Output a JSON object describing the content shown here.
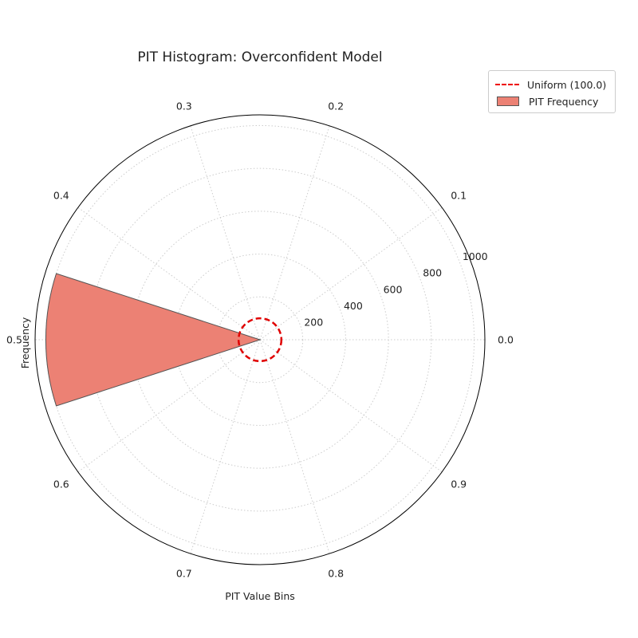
{
  "chart_data": {
    "type": "polar-bar",
    "title": "PIT Histogram: Overconfident Model",
    "xlabel": "PIT Value Bins",
    "ylabel": "Frequency",
    "categories": [
      "0.0",
      "0.1",
      "0.2",
      "0.3",
      "0.4",
      "0.5",
      "0.6",
      "0.7",
      "0.8",
      "0.9"
    ],
    "values": [
      0,
      0,
      0,
      0,
      0,
      1000,
      0,
      0,
      0,
      0
    ],
    "radial_ticks": [
      200,
      400,
      600,
      800,
      1000
    ],
    "rlim": [
      0,
      1050
    ],
    "uniform_level": 100,
    "grid": true,
    "legend_position": "upper-right-outside",
    "series": [
      {
        "name": "Uniform (100.0)",
        "kind": "reference-circle",
        "color": "#e00000",
        "style": "dashed"
      },
      {
        "name": "PIT Frequency",
        "kind": "bars",
        "color": "#ec8174",
        "edgecolor": "#555555"
      }
    ]
  }
}
